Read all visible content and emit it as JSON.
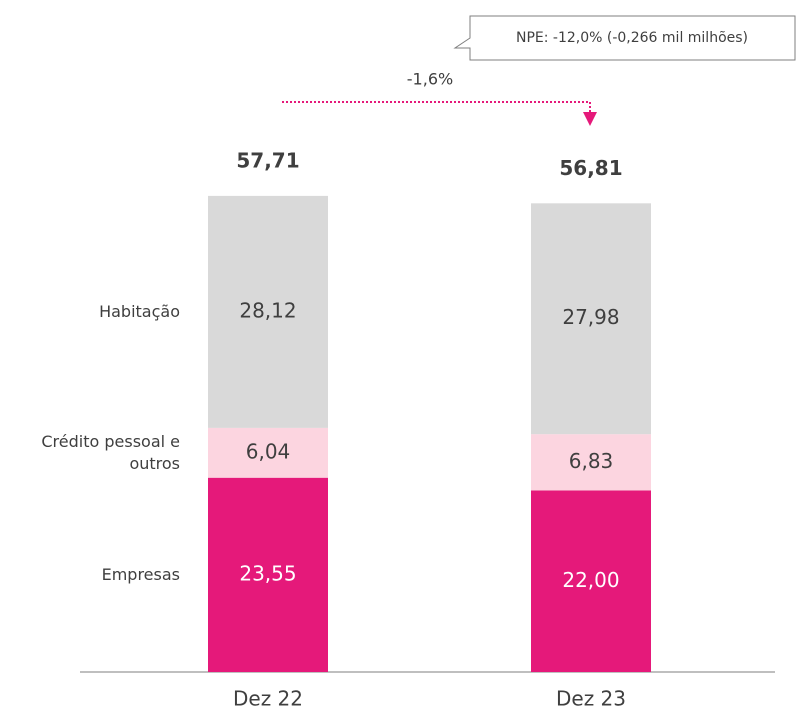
{
  "chart_data": {
    "type": "stacked_bar",
    "categories": [
      "Dez 22",
      "Dez 23"
    ],
    "series": [
      {
        "name": "Empresas",
        "color": "#e5197a",
        "values": [
          23.55,
          22.0
        ],
        "value_labels": [
          "23,55",
          "22,00"
        ]
      },
      {
        "name": "Crédito pessoal e outros",
        "color": "#fcd5e0",
        "values": [
          6.04,
          6.83
        ],
        "value_labels": [
          "6,04",
          "6,83"
        ]
      },
      {
        "name": "Habitação",
        "color": "#d9d9d9",
        "values": [
          28.12,
          27.98
        ],
        "value_labels": [
          "28,12",
          "27,98"
        ]
      }
    ],
    "totals": [
      57.71,
      56.81
    ],
    "total_labels": [
      "57,71",
      "56,81"
    ],
    "annotations": [
      "-1,6%",
      "NPE: -12,0% (-0,266 mil milhões)"
    ]
  }
}
